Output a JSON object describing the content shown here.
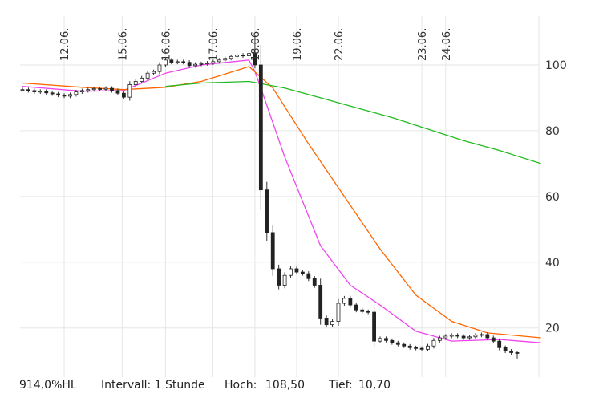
{
  "chart_data": {
    "type": "candlestick",
    "x_tick_labels": [
      "12.06.",
      "15.06.",
      "16.06.",
      "17.06.",
      "18.06.",
      "19.06.",
      "22.06.",
      "23.06.",
      "24.06."
    ],
    "y_ticks": [
      20,
      40,
      60,
      80,
      100
    ],
    "y_tick_labels": [
      "20",
      "40",
      "60",
      "80",
      "100"
    ],
    "ylim": [
      7,
      110
    ],
    "grid": true,
    "price": [
      92.5,
      92.2,
      91.8,
      92.0,
      91.5,
      91.2,
      90.8,
      90.5,
      91.0,
      91.8,
      92.2,
      92.5,
      92.8,
      92.6,
      92.9,
      92.2,
      91.4,
      90.2,
      94.0,
      95.0,
      96.0,
      97.5,
      98.0,
      100.0,
      101.5,
      100.8,
      101.0,
      100.8,
      99.8,
      100.2,
      100.4,
      100.6,
      101.0,
      101.5,
      102.0,
      102.6,
      103.0,
      102.8,
      103.5,
      100.0,
      62.0,
      49.0,
      38.0,
      33.0,
      36.0,
      38.0,
      37.0,
      36.5,
      35.0,
      33.0,
      23.0,
      21.0,
      22.0,
      27.5,
      29.0,
      27.0,
      25.5,
      25.0,
      24.8,
      16.0,
      16.8,
      16.2,
      15.5,
      15.0,
      14.5,
      14.0,
      13.8,
      13.5,
      14.5,
      16.2,
      17.0,
      17.5,
      17.8,
      17.5,
      17.0,
      17.3,
      17.8,
      18.0,
      17.0,
      16.0,
      14.0,
      13.0,
      12.5,
      12.3
    ],
    "price_high": 108.5,
    "price_low": 10.7,
    "series": [
      {
        "color": "#ee44ee",
        "x": [
          0,
          10,
          17,
          24,
          30,
          38,
          39,
          40,
          44,
          50,
          55,
          60,
          66,
          72,
          80,
          87
        ],
        "y": [
          93.5,
          92.0,
          92.2,
          97.5,
          100.0,
          101.5,
          98.0,
          93.0,
          72.0,
          45.0,
          33.0,
          27.0,
          19.0,
          16.0,
          16.5,
          15.5
        ]
      },
      {
        "color": "#ff6600",
        "x": [
          0,
          10,
          17,
          24,
          30,
          38,
          42,
          48,
          54,
          60,
          66,
          72,
          78,
          87
        ],
        "y": [
          94.5,
          93.2,
          92.5,
          93.2,
          95.0,
          99.5,
          93.0,
          76.0,
          60.0,
          44.0,
          30.0,
          22.0,
          18.5,
          17.0
        ]
      },
      {
        "color": "#22bb22",
        "x": [
          24,
          30,
          38,
          44,
          50,
          56,
          62,
          68,
          74,
          80,
          87
        ],
        "y": [
          93.5,
          94.5,
          95.0,
          93.0,
          90.0,
          87.0,
          84.0,
          80.5,
          77.0,
          74.0,
          70.0
        ]
      }
    ]
  },
  "footer": {
    "name": "914,0%HL",
    "interval": "Intervall: 1 Stunde",
    "high_label": "Hoch:",
    "high_value": "108,50",
    "low_label": "Tief:",
    "low_value": "10,70"
  }
}
